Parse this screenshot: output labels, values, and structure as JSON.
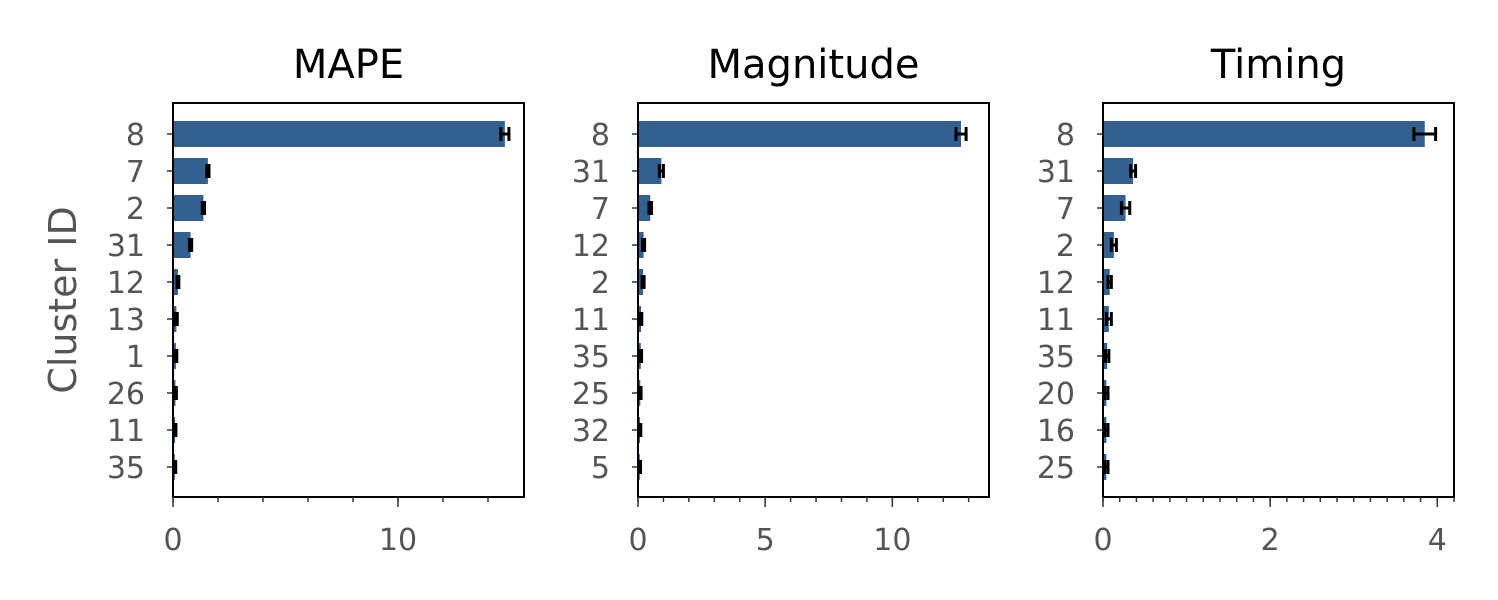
{
  "chart_data": [
    {
      "type": "bar",
      "orientation": "horizontal",
      "title": "MAPE",
      "ylabel": "Cluster ID",
      "xlabel": "",
      "xlim": [
        0,
        15.6
      ],
      "xticks": [
        0,
        10
      ],
      "xticklabels": [
        "0",
        "10"
      ],
      "minor_tick_step": 2,
      "categories": [
        "8",
        "7",
        "2",
        "31",
        "12",
        "13",
        "1",
        "26",
        "11",
        "35"
      ],
      "values": [
        14.75,
        1.55,
        1.35,
        0.78,
        0.22,
        0.15,
        0.13,
        0.11,
        0.09,
        0.08
      ],
      "errors": [
        0.18,
        0.05,
        0.05,
        0.05,
        0.04,
        0.04,
        0.04,
        0.04,
        0.04,
        0.04
      ],
      "bar_color": "#33608f",
      "grid": false
    },
    {
      "type": "bar",
      "orientation": "horizontal",
      "title": "Magnitude",
      "ylabel": "",
      "xlabel": "",
      "xlim": [
        0,
        13.8
      ],
      "xticks": [
        0,
        5,
        10
      ],
      "xticklabels": [
        "0",
        "5",
        "10"
      ],
      "minor_tick_step": 1,
      "categories": [
        "8",
        "31",
        "7",
        "12",
        "2",
        "11",
        "35",
        "25",
        "32",
        "5"
      ],
      "values": [
        12.7,
        0.92,
        0.48,
        0.22,
        0.2,
        0.12,
        0.11,
        0.09,
        0.08,
        0.07
      ],
      "errors": [
        0.2,
        0.08,
        0.05,
        0.04,
        0.04,
        0.03,
        0.03,
        0.03,
        0.03,
        0.03
      ],
      "bar_color": "#33608f",
      "grid": false
    },
    {
      "type": "bar",
      "orientation": "horizontal",
      "title": "Timing",
      "ylabel": "",
      "xlabel": "",
      "xlim": [
        0,
        4.2
      ],
      "xticks": [
        0,
        2,
        4
      ],
      "xticklabels": [
        "0",
        "2",
        "4"
      ],
      "minor_tick_step": 0.2,
      "categories": [
        "8",
        "31",
        "7",
        "2",
        "12",
        "11",
        "35",
        "20",
        "16",
        "25"
      ],
      "values": [
        3.85,
        0.36,
        0.27,
        0.13,
        0.08,
        0.07,
        0.05,
        0.04,
        0.04,
        0.04
      ],
      "errors": [
        0.13,
        0.03,
        0.05,
        0.03,
        0.02,
        0.03,
        0.02,
        0.02,
        0.02,
        0.02
      ],
      "bar_color": "#33608f",
      "grid": false
    }
  ]
}
